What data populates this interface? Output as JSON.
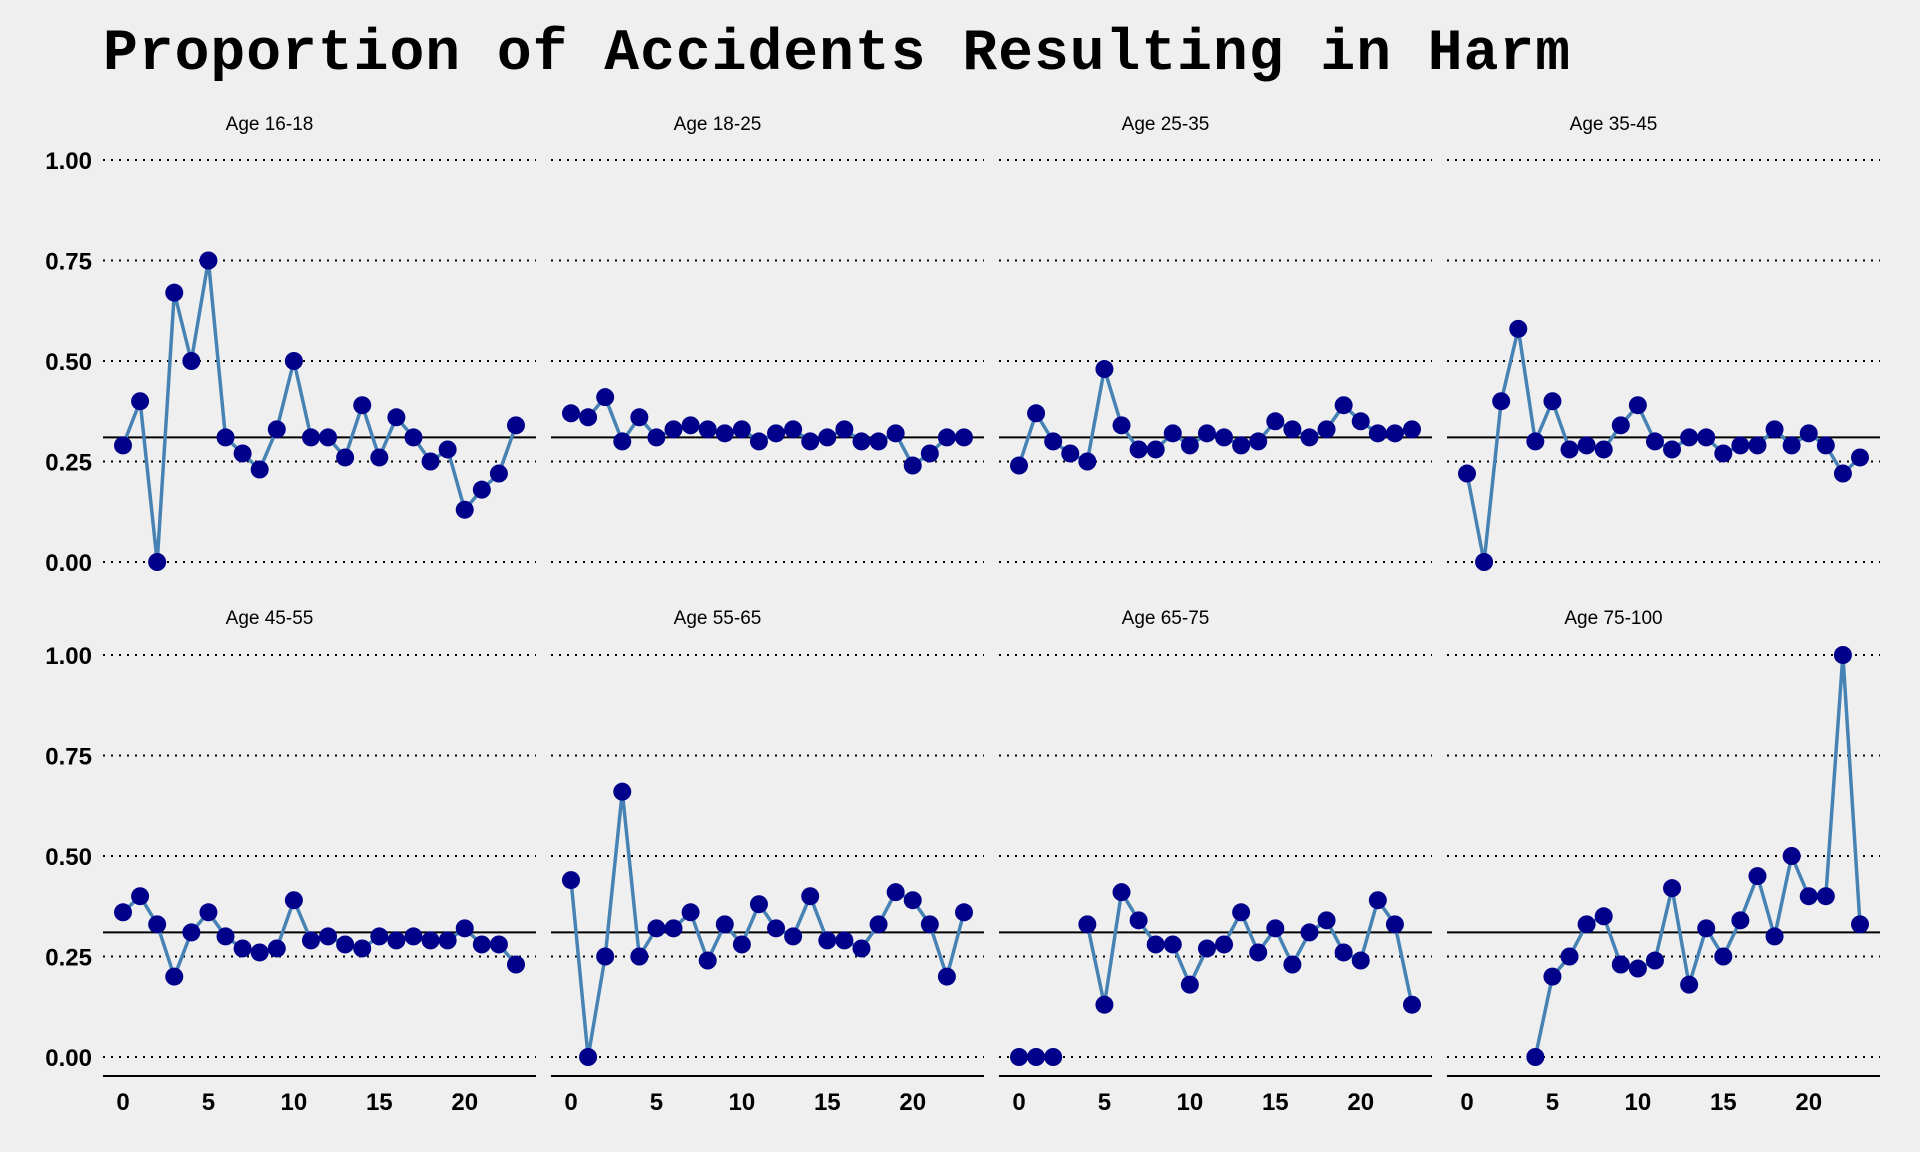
{
  "chart_data": {
    "type": "line",
    "title": "Proportion of Accidents Resulting in Harm",
    "xlabel": "",
    "ylabel": "",
    "xlim": [
      0,
      23
    ],
    "ylim": [
      0,
      1
    ],
    "x_ticks": [
      "0",
      "5",
      "10",
      "15",
      "20"
    ],
    "y_ticks": [
      "0.00",
      "0.25",
      "0.50",
      "0.75",
      "1.00"
    ],
    "y_tick_values": [
      0,
      0.25,
      0.5,
      0.75,
      1
    ],
    "grid": "horizontal dotted",
    "reference_line": 0.31,
    "line_color": "#4682b4",
    "point_color": "#00008b",
    "panels": [
      {
        "name": "Age 16-18",
        "x": [
          0,
          1,
          2,
          3,
          4,
          5,
          6,
          7,
          8,
          9,
          10,
          11,
          12,
          13,
          14,
          15,
          16,
          17,
          18,
          19,
          20,
          21,
          22,
          23
        ],
        "y": [
          0.29,
          0.4,
          0.0,
          0.67,
          0.5,
          0.75,
          0.31,
          0.27,
          0.23,
          0.33,
          0.5,
          0.31,
          0.31,
          0.26,
          0.39,
          0.26,
          0.36,
          0.31,
          0.25,
          0.28,
          0.13,
          0.18,
          0.22,
          0.34
        ]
      },
      {
        "name": "Age 18-25",
        "x": [
          0,
          1,
          2,
          3,
          4,
          5,
          6,
          7,
          8,
          9,
          10,
          11,
          12,
          13,
          14,
          15,
          16,
          17,
          18,
          19,
          20,
          21,
          22,
          23
        ],
        "y": [
          0.37,
          0.36,
          0.41,
          0.3,
          0.36,
          0.31,
          0.33,
          0.34,
          0.33,
          0.32,
          0.33,
          0.3,
          0.32,
          0.33,
          0.3,
          0.31,
          0.33,
          0.3,
          0.3,
          0.32,
          0.24,
          0.27,
          0.31,
          0.31
        ]
      },
      {
        "name": "Age 25-35",
        "x": [
          0,
          1,
          2,
          3,
          4,
          5,
          6,
          7,
          8,
          9,
          10,
          11,
          12,
          13,
          14,
          15,
          16,
          17,
          18,
          19,
          20,
          21,
          22,
          23
        ],
        "y": [
          0.24,
          0.37,
          0.3,
          0.27,
          0.25,
          0.48,
          0.34,
          0.28,
          0.28,
          0.32,
          0.29,
          0.32,
          0.31,
          0.29,
          0.3,
          0.35,
          0.33,
          0.31,
          0.33,
          0.39,
          0.35,
          0.32,
          0.32,
          0.33
        ]
      },
      {
        "name": "Age 35-45",
        "x": [
          0,
          1,
          2,
          3,
          4,
          5,
          6,
          7,
          8,
          9,
          10,
          11,
          12,
          13,
          14,
          15,
          16,
          17,
          18,
          19,
          20,
          21,
          22,
          23
        ],
        "y": [
          0.22,
          0.0,
          0.4,
          0.58,
          0.3,
          0.4,
          0.28,
          0.29,
          0.28,
          0.34,
          0.39,
          0.3,
          0.28,
          0.31,
          0.31,
          0.27,
          0.29,
          0.29,
          0.33,
          0.29,
          0.32,
          0.29,
          0.22,
          0.26
        ]
      },
      {
        "name": "Age 45-55",
        "x": [
          0,
          1,
          2,
          3,
          4,
          5,
          6,
          7,
          8,
          9,
          10,
          11,
          12,
          13,
          14,
          15,
          16,
          17,
          18,
          19,
          20,
          21,
          22,
          23
        ],
        "y": [
          0.36,
          0.4,
          0.33,
          0.2,
          0.31,
          0.36,
          0.3,
          0.27,
          0.26,
          0.27,
          0.39,
          0.29,
          0.3,
          0.28,
          0.27,
          0.3,
          0.29,
          0.3,
          0.29,
          0.29,
          0.32,
          0.28,
          0.28,
          0.23
        ]
      },
      {
        "name": "Age 55-65",
        "x": [
          0,
          1,
          2,
          3,
          4,
          5,
          6,
          7,
          8,
          9,
          10,
          11,
          12,
          13,
          14,
          15,
          16,
          17,
          18,
          19,
          20,
          21,
          22,
          23
        ],
        "y": [
          0.44,
          0.0,
          0.25,
          0.66,
          0.25,
          0.32,
          0.32,
          0.36,
          0.24,
          0.33,
          0.28,
          0.38,
          0.32,
          0.3,
          0.4,
          0.29,
          0.29,
          0.27,
          0.33,
          0.41,
          0.39,
          0.33,
          0.2,
          0.36
        ]
      },
      {
        "name": "Age 65-75",
        "x": [
          0,
          1,
          2,
          3,
          4,
          5,
          6,
          7,
          8,
          9,
          10,
          11,
          12,
          13,
          14,
          15,
          16,
          17,
          18,
          19,
          20,
          21,
          22,
          23
        ],
        "y": [
          0.0,
          0.0,
          0.0,
          null,
          0.33,
          0.13,
          0.41,
          0.34,
          0.28,
          0.28,
          0.18,
          0.27,
          0.28,
          0.36,
          0.26,
          0.32,
          0.23,
          0.31,
          0.34,
          0.26,
          0.24,
          0.39,
          0.33,
          0.13
        ]
      },
      {
        "name": "Age 75-100",
        "x": [
          4,
          5,
          6,
          7,
          8,
          9,
          10,
          11,
          12,
          13,
          14,
          15,
          16,
          17,
          18,
          19,
          20,
          21,
          22,
          23
        ],
        "y": [
          0.0,
          0.2,
          0.25,
          0.33,
          0.35,
          0.23,
          0.22,
          0.24,
          0.42,
          0.18,
          0.32,
          0.25,
          0.34,
          0.45,
          0.3,
          0.5,
          0.4,
          0.4,
          1.0,
          0.33
        ]
      }
    ]
  }
}
